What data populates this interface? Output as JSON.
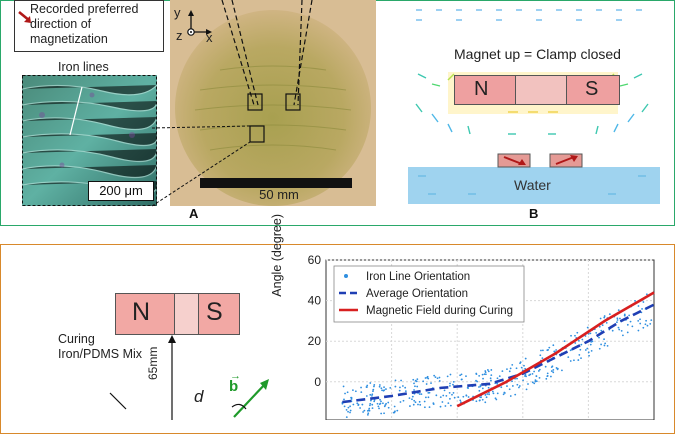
{
  "panel_a": {
    "legend_text": "Recorded preferred direction of magnetization",
    "axis_y": "y",
    "axis_z": "z",
    "axis_x": "x",
    "inset_label": "Iron lines",
    "inset_scale": "200 μm",
    "main_scale": "50 mm",
    "letter": "A",
    "colors": {
      "arrow": "#b01818",
      "dish": "#b8a15a",
      "inset": "#3f8f86"
    }
  },
  "panel_b": {
    "title": "Magnet up = Clamp closed",
    "magnet_n": "N",
    "magnet_s": "S",
    "water_label": "Water",
    "letter": "B",
    "colors": {
      "magnet": "#eea0a0",
      "water": "#9fd3ef",
      "field": "#3aa8e0"
    }
  },
  "panel_c": {
    "magnet_n": "N",
    "magnet_s": "S",
    "curing_label": "Curing Iron/PDMS Mix",
    "distance_label": "65mm",
    "d_label": "d",
    "b_label": "b"
  },
  "chart_data": {
    "type": "scatter",
    "ylabel": "Angle (degree)",
    "yticks": [
      0,
      20,
      40,
      60
    ],
    "ylim": [
      -15,
      60
    ],
    "xlim": [
      0,
      1
    ],
    "series": [
      {
        "name": "Iron Line Orientation",
        "style": "dots",
        "color": "#2f8fe0"
      },
      {
        "name": "Average Orientation",
        "style": "dashed",
        "color": "#1f3fb4",
        "x": [
          0.05,
          0.2,
          0.35,
          0.5,
          0.6,
          0.7,
          0.8,
          0.9,
          1.0
        ],
        "y": [
          -10,
          -7,
          -3,
          -1,
          4,
          12,
          20,
          30,
          38
        ]
      },
      {
        "name": "Magnetic Field during Curing",
        "style": "solid",
        "color": "#d82020",
        "x": [
          0.4,
          0.55,
          0.7,
          0.85,
          1.0
        ],
        "y": [
          -12,
          0,
          14,
          30,
          44
        ]
      }
    ]
  }
}
